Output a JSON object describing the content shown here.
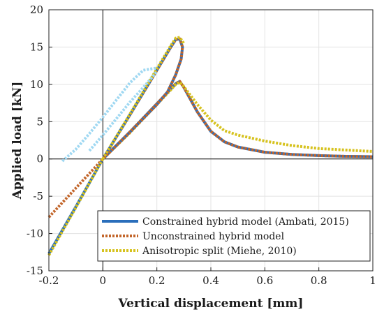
{
  "chart_data": {
    "type": "line",
    "title": "",
    "xlabel": "Vertical displacement [mm]",
    "ylabel": "Applied load [kN]",
    "xlim": [
      -0.2,
      1
    ],
    "ylim": [
      -15,
      20
    ],
    "xticks": [
      -0.2,
      0,
      0.2,
      0.4,
      0.6,
      0.8,
      1
    ],
    "xtick_labels": [
      "-0.2",
      "0",
      "0.2",
      "0.4",
      "0.6",
      "0.8",
      "1"
    ],
    "yticks": [
      -15,
      -10,
      -5,
      0,
      5,
      10,
      15,
      20
    ],
    "ytick_labels": [
      "-15",
      "-10",
      "-5",
      "0",
      "5",
      "10",
      "15",
      "20"
    ],
    "grid": true,
    "zero_lines": true,
    "legend_position": "bottom-right",
    "series": [
      {
        "name": "Constrained hybrid model (Ambati, 2015)",
        "color": "#2a6ebb",
        "style": "solid",
        "x": [
          -0.2,
          -0.1,
          0,
          0.1,
          0.2,
          0.25,
          0.27,
          0.285,
          0.3,
          0.35,
          0.4,
          0.45,
          0.5,
          0.6,
          0.7,
          0.8,
          0.9,
          1.0
        ],
        "y": [
          -12.7,
          -6.4,
          0,
          3.6,
          7.4,
          9.3,
          10.1,
          10.4,
          9.6,
          6.3,
          3.7,
          2.3,
          1.6,
          0.9,
          0.6,
          0.45,
          0.35,
          0.3
        ]
      },
      {
        "name": "Unconstrained hybrid model",
        "color": "#c2652a",
        "style": "dotted",
        "x": [
          -0.2,
          -0.1,
          0,
          0.1,
          0.2,
          0.25,
          0.27,
          0.285,
          0.3,
          0.35,
          0.4,
          0.45,
          0.5,
          0.6,
          0.7,
          0.8,
          0.9,
          1.0
        ],
        "y": [
          -7.8,
          -3.9,
          0,
          3.6,
          7.4,
          9.3,
          10.1,
          10.4,
          9.6,
          6.3,
          3.7,
          2.3,
          1.6,
          0.9,
          0.6,
          0.45,
          0.35,
          0.3
        ]
      },
      {
        "name": "Anisotropic split (Miehe, 2010)",
        "color": "#d6c21e",
        "style": "dotted",
        "x": [
          -0.2,
          -0.1,
          0,
          0.1,
          0.2,
          0.25,
          0.27,
          0.285,
          0.3,
          0.35,
          0.4,
          0.45,
          0.5,
          0.6,
          0.7,
          0.8,
          0.9,
          1.0
        ],
        "y": [
          -12.9,
          -6.5,
          0,
          3.5,
          7.3,
          9.2,
          10.0,
          10.3,
          9.7,
          7.3,
          5.2,
          3.8,
          3.2,
          2.4,
          1.8,
          1.4,
          1.2,
          1.0
        ]
      },
      {
        "name": "",
        "color": "#2a6ebb",
        "style": "solid",
        "x": [
          0,
          0.1,
          0.2,
          0.25,
          0.27,
          0.285,
          0.295,
          0.29,
          0.27,
          0.24,
          0.2,
          0.1,
          0
        ],
        "y": [
          0,
          5.9,
          11.9,
          14.9,
          16.0,
          16.1,
          15.0,
          13.4,
          11.3,
          9.0,
          7.3,
          3.6,
          0
        ]
      },
      {
        "name": "",
        "color": "#c2652a",
        "style": "dotted",
        "x": [
          0,
          0.1,
          0.2,
          0.25,
          0.27,
          0.285,
          0.295,
          0.29,
          0.27,
          0.24,
          0.2,
          0.1,
          0
        ],
        "y": [
          0,
          5.9,
          11.9,
          14.9,
          16.0,
          16.1,
          15.0,
          13.4,
          11.3,
          9.0,
          7.3,
          3.6,
          0
        ]
      },
      {
        "name": "",
        "color": "#d6c21e",
        "style": "dotted",
        "x": [
          0,
          0.1,
          0.2,
          0.25,
          0.27,
          0.285,
          0.3
        ],
        "y": [
          0,
          6.0,
          12.1,
          15.1,
          16.2,
          16.3,
          15.5
        ]
      },
      {
        "name": "",
        "color": "#9fd8f2",
        "style": "dotted",
        "x": [
          -0.15,
          -0.1,
          -0.05,
          0,
          0.05,
          0.1,
          0.15,
          0.2
        ],
        "y": [
          -0.3,
          1.3,
          3.4,
          5.6,
          7.9,
          10.2,
          11.9,
          12.2
        ]
      },
      {
        "name": "",
        "color": "#9fd8f2",
        "style": "dotted",
        "x": [
          -0.05,
          0,
          0.05,
          0.1,
          0.15,
          0.2
        ],
        "y": [
          1.1,
          3.2,
          5.4,
          7.6,
          9.6,
          11.7
        ]
      }
    ]
  }
}
